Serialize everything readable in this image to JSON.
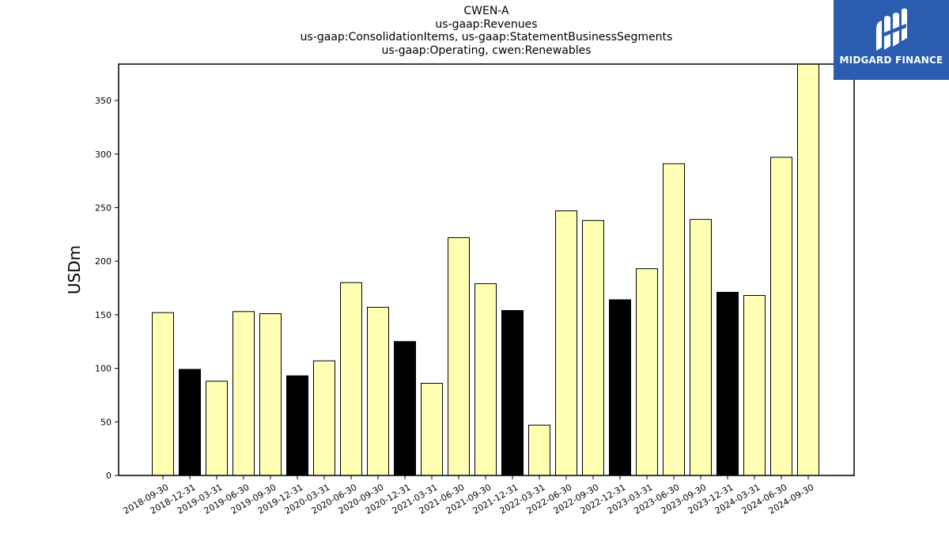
{
  "title_lines": [
    "CWEN-A",
    "us-gaap:Revenues",
    "us-gaap:ConsolidationItems, us-gaap:StatementBusinessSegments",
    "us-gaap:Operating, cwen:Renewables"
  ],
  "logo": {
    "text": "MIDGARD FINANCE",
    "icon": "midgard-logo-icon",
    "color": "#2a5db0"
  },
  "colors": {
    "bar_default": "#ffffb3",
    "bar_q4": "#000000",
    "edge": "#000000"
  },
  "chart_data": {
    "type": "bar",
    "ylabel": "USDm",
    "xlabel": "",
    "ylim": [
      0,
      384
    ],
    "yticks": [
      0,
      50,
      100,
      150,
      200,
      250,
      300,
      350
    ],
    "categories": [
      "2018-09-30",
      "2018-12-31",
      "2019-03-31",
      "2019-06-30",
      "2019-09-30",
      "2019-12-31",
      "2020-03-31",
      "2020-06-30",
      "2020-09-30",
      "2020-12-31",
      "2021-03-31",
      "2021-06-30",
      "2021-09-30",
      "2021-12-31",
      "2022-03-31",
      "2022-06-30",
      "2022-09-30",
      "2022-12-31",
      "2023-03-31",
      "2023-06-30",
      "2023-09-30",
      "2023-12-31",
      "2024-03-31",
      "2024-06-30",
      "2024-09-30"
    ],
    "values": [
      152,
      99,
      88,
      153,
      151,
      93,
      107,
      180,
      157,
      125,
      86,
      222,
      179,
      154,
      47,
      247,
      238,
      164,
      193,
      291,
      239,
      171,
      168,
      297,
      384
    ],
    "grid": false,
    "legend": "none"
  }
}
